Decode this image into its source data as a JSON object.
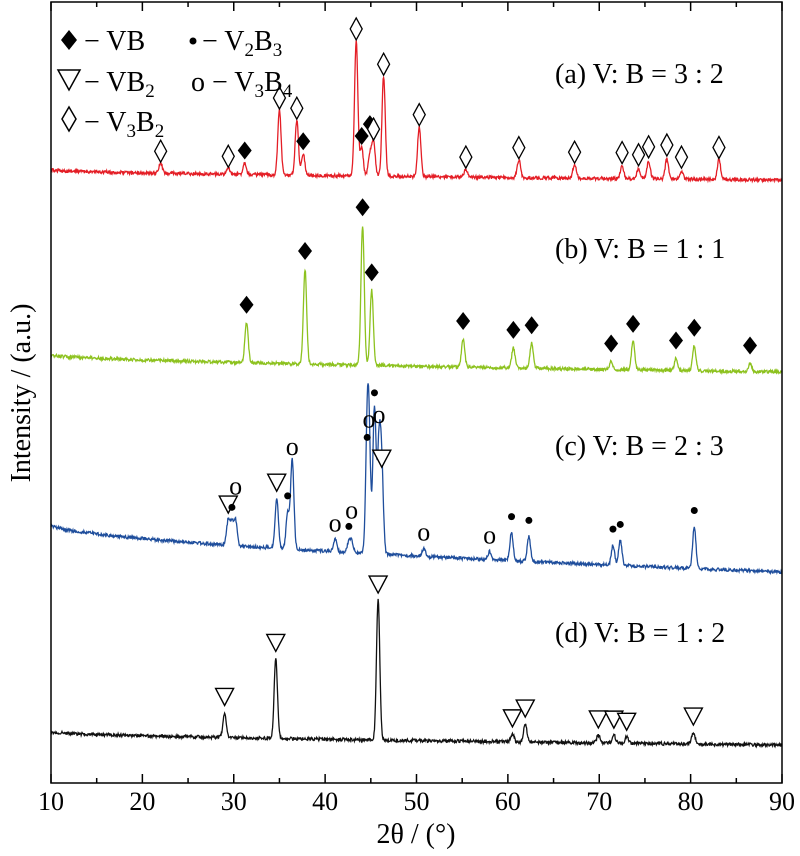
{
  "chart_data": {
    "type": "line",
    "xlabel": "2θ / (°)",
    "ylabel": "Intensity / (a.u.)",
    "xlim": [
      10,
      90
    ],
    "x_ticks": [
      "10",
      "20",
      "30",
      "40",
      "50",
      "60",
      "70",
      "80",
      "90"
    ],
    "grid": false,
    "legend_position": "top-left",
    "legend": [
      {
        "symbol": "diamond",
        "phase": "VB",
        "label": "− VB"
      },
      {
        "symbol": "dot",
        "phase": "V2B3",
        "label": "− V2B3"
      },
      {
        "symbol": "triangle",
        "phase": "VB2",
        "label": "− VB2"
      },
      {
        "symbol": "circle",
        "phase": "V3B4",
        "label": "o − V3B4"
      },
      {
        "symbol": "rhombus",
        "phase": "V3B2",
        "label": "− V3B2"
      }
    ],
    "series": [
      {
        "name": "(a) V: B = 3 : 2",
        "color": "#e41e26",
        "baseline_start": 170,
        "baseline_end": 180,
        "peaks": [
          {
            "x": 22.0,
            "h": 10,
            "marker": "rhombus",
            "mdy": 12
          },
          {
            "x": 29.4,
            "h": 6,
            "marker": "rhombus",
            "mdy": 12
          },
          {
            "x": 31.2,
            "h": 12,
            "marker": "diamond",
            "mdy": 12
          },
          {
            "x": 35.0,
            "h": 65,
            "marker": "rhombus",
            "mdy": 12
          },
          {
            "x": 36.9,
            "h": 55,
            "marker": "rhombus",
            "mdy": 12
          },
          {
            "x": 37.6,
            "h": 22,
            "marker": "diamond",
            "mdy": 12
          },
          {
            "x": 43.4,
            "h": 135,
            "marker": "rhombus",
            "mdy": 12
          },
          {
            "x": 44.0,
            "h": 28,
            "marker": "diamond",
            "mdy": 12
          },
          {
            "x": 44.9,
            "h": 22,
            "marker": "diamond",
            "mdy": 30
          },
          {
            "x": 45.3,
            "h": 35,
            "marker": "rhombus",
            "mdy": 12
          },
          {
            "x": 46.4,
            "h": 100,
            "marker": "rhombus",
            "mdy": 12
          },
          {
            "x": 50.3,
            "h": 50,
            "marker": "rhombus",
            "mdy": 12
          },
          {
            "x": 55.4,
            "h": 8,
            "marker": "rhombus",
            "mdy": 12
          },
          {
            "x": 61.2,
            "h": 18,
            "marker": "rhombus",
            "mdy": 12
          },
          {
            "x": 67.3,
            "h": 14,
            "marker": "rhombus",
            "mdy": 12
          },
          {
            "x": 72.5,
            "h": 12,
            "marker": "rhombus",
            "mdy": 14
          },
          {
            "x": 74.3,
            "h": 10,
            "marker": "rhombus",
            "mdy": 14
          },
          {
            "x": 75.4,
            "h": 18,
            "marker": "rhombus",
            "mdy": 14
          },
          {
            "x": 77.4,
            "h": 20,
            "marker": "rhombus",
            "mdy": 14
          },
          {
            "x": 79.0,
            "h": 8,
            "marker": "rhombus",
            "mdy": 14
          },
          {
            "x": 83.1,
            "h": 20,
            "marker": "rhombus",
            "mdy": 12
          }
        ]
      },
      {
        "name": "(b) V: B = 1 : 1",
        "color": "#8dc21f",
        "baseline_start": 355,
        "baseline_end": 372,
        "peaks": [
          {
            "x": 31.4,
            "h": 40,
            "marker": "diamond",
            "mdy": 18
          },
          {
            "x": 37.8,
            "h": 95,
            "marker": "diamond",
            "mdy": 18
          },
          {
            "x": 44.1,
            "h": 140,
            "marker": "diamond",
            "mdy": 18
          },
          {
            "x": 45.1,
            "h": 75,
            "marker": "diamond",
            "mdy": 18
          },
          {
            "x": 55.1,
            "h": 28,
            "marker": "diamond",
            "mdy": 18
          },
          {
            "x": 60.6,
            "h": 20,
            "marker": "diamond",
            "mdy": 18
          },
          {
            "x": 62.6,
            "h": 25,
            "marker": "diamond",
            "mdy": 18
          },
          {
            "x": 71.3,
            "h": 8,
            "marker": "diamond",
            "mdy": 18
          },
          {
            "x": 73.7,
            "h": 28,
            "marker": "diamond",
            "mdy": 18
          },
          {
            "x": 78.4,
            "h": 12,
            "marker": "diamond",
            "mdy": 18
          },
          {
            "x": 80.4,
            "h": 25,
            "marker": "diamond",
            "mdy": 18
          },
          {
            "x": 86.5,
            "h": 8,
            "marker": "diamond",
            "mdy": 18
          }
        ]
      },
      {
        "name": "(c) V: B = 2 : 3",
        "color": "#1f4e9c",
        "baseline_start": 525,
        "baseline_end": 572,
        "peaks": [
          {
            "x": 29.4,
            "h": 25,
            "marker": "triangle",
            "mdy": 16
          },
          {
            "x": 29.8,
            "h": 22,
            "marker": "dot",
            "mdy": 16
          },
          {
            "x": 30.2,
            "h": 25,
            "marker": "circle",
            "mdy": 34
          },
          {
            "x": 34.7,
            "h": 50,
            "marker": "triangle",
            "mdy": 16
          },
          {
            "x": 35.9,
            "h": 35,
            "marker": "dot",
            "mdy": 18
          },
          {
            "x": 36.4,
            "h": 90,
            "marker": "circle",
            "mdy": 12
          },
          {
            "x": 41.1,
            "h": 12,
            "marker": "circle",
            "mdy": 16
          },
          {
            "x": 42.6,
            "h": 10,
            "marker": "dot",
            "mdy": 16
          },
          {
            "x": 42.9,
            "h": 10,
            "marker": "circle",
            "mdy": 32
          },
          {
            "x": 44.6,
            "h": 100,
            "marker": "dot",
            "mdy": 16
          },
          {
            "x": 44.8,
            "h": 100,
            "marker": "circle",
            "mdy": 34
          },
          {
            "x": 45.4,
            "h": 145,
            "marker": "dot",
            "mdy": 16
          },
          {
            "x": 45.9,
            "h": 105,
            "marker": "circle",
            "mdy": 34
          },
          {
            "x": 46.2,
            "h": 80,
            "marker": "triangle",
            "mdy": 16
          },
          {
            "x": 50.8,
            "h": 8,
            "marker": "circle",
            "mdy": 16
          },
          {
            "x": 58.0,
            "h": 8,
            "marker": "circle",
            "mdy": 16
          },
          {
            "x": 60.4,
            "h": 28,
            "marker": "dot",
            "mdy": 16
          },
          {
            "x": 62.3,
            "h": 25,
            "marker": "dot",
            "mdy": 16
          },
          {
            "x": 71.5,
            "h": 20,
            "marker": "dot",
            "mdy": 16
          },
          {
            "x": 72.3,
            "h": 25,
            "marker": "dot",
            "mdy": 16
          },
          {
            "x": 80.4,
            "h": 42,
            "marker": "dot",
            "mdy": 16
          }
        ]
      },
      {
        "name": "(d) V: B = 1 : 2",
        "color": "#111111",
        "baseline_start": 732,
        "baseline_end": 745,
        "peaks": [
          {
            "x": 29.0,
            "h": 25,
            "marker": "triangle",
            "mdy": 16
          },
          {
            "x": 34.6,
            "h": 80,
            "marker": "triangle",
            "mdy": 16
          },
          {
            "x": 45.8,
            "h": 140,
            "marker": "triangle",
            "mdy": 16
          },
          {
            "x": 60.5,
            "h": 8,
            "marker": "triangle",
            "mdy": 16
          },
          {
            "x": 61.9,
            "h": 18,
            "marker": "triangle",
            "mdy": 16
          },
          {
            "x": 69.9,
            "h": 8,
            "marker": "triangle",
            "mdy": 16
          },
          {
            "x": 71.6,
            "h": 8,
            "marker": "triangle",
            "mdy": 16
          },
          {
            "x": 73.0,
            "h": 6,
            "marker": "triangle",
            "mdy": 16
          },
          {
            "x": 80.3,
            "h": 12,
            "marker": "triangle",
            "mdy": 16
          }
        ]
      }
    ]
  }
}
